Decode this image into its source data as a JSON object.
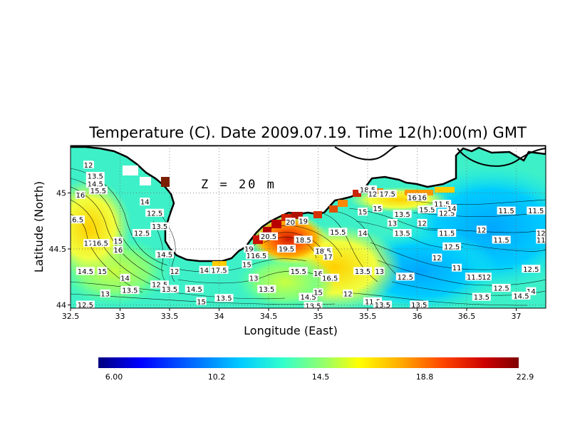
{
  "title": "Temperature (C). Date 2009.07.19. Time 12(h):00(m) GMT",
  "depth_label": "Z = 20 m",
  "x_axis": {
    "label": "Longitude (East)",
    "ticks": [
      32.5,
      33,
      33.5,
      34,
      34.5,
      35,
      35.5,
      36,
      36.5,
      37
    ],
    "tick_labels": [
      "32.5",
      "33",
      "33.5",
      "34",
      "34.5",
      "35",
      "35.5",
      "36",
      "36.5",
      "37"
    ],
    "range": [
      32.5,
      37.3
    ]
  },
  "y_axis": {
    "label": "Latitude (North)",
    "ticks": [
      44,
      44.5,
      45
    ],
    "tick_labels": [
      "44",
      "44.5",
      "45"
    ],
    "range": [
      44,
      45.3
    ]
  },
  "grid": "dotted",
  "colorbar": {
    "min": 6.0,
    "max": 22.9,
    "tick_labels": [
      "6.00",
      "10.2",
      "14.5",
      "18.8",
      "22.9"
    ],
    "colors": [
      "#00007f",
      "#0000ff",
      "#0066ff",
      "#00ccff",
      "#33ffcc",
      "#99ff66",
      "#ffff00",
      "#ffaa00",
      "#ff4400",
      "#cc0000",
      "#7f0000"
    ]
  },
  "colors": {
    "land": "#ffffff",
    "coast": "#000000"
  },
  "contour_labels": [
    {
      "text": "12",
      "lon": 32.68,
      "lat": 45.25
    },
    {
      "text": "13.5",
      "lon": 32.75,
      "lat": 45.15
    },
    {
      "text": "14.5",
      "lon": 32.75,
      "lat": 45.08
    },
    {
      "text": "15.5",
      "lon": 32.78,
      "lat": 45.02
    },
    {
      "text": "16",
      "lon": 32.6,
      "lat": 44.98
    },
    {
      "text": "14",
      "lon": 33.25,
      "lat": 44.92
    },
    {
      "text": "12.5",
      "lon": 33.35,
      "lat": 44.82
    },
    {
      "text": "16.5",
      "lon": 32.55,
      "lat": 44.76
    },
    {
      "text": "13.5",
      "lon": 33.4,
      "lat": 44.7
    },
    {
      "text": "12.5",
      "lon": 33.22,
      "lat": 44.64
    },
    {
      "text": "17",
      "lon": 32.68,
      "lat": 44.55
    },
    {
      "text": "16.5",
      "lon": 32.8,
      "lat": 44.55
    },
    {
      "text": "15",
      "lon": 32.98,
      "lat": 44.57
    },
    {
      "text": "16",
      "lon": 32.98,
      "lat": 44.49
    },
    {
      "text": "14.5",
      "lon": 33.45,
      "lat": 44.45
    },
    {
      "text": "14.5",
      "lon": 32.65,
      "lat": 44.3
    },
    {
      "text": "15",
      "lon": 32.82,
      "lat": 44.3
    },
    {
      "text": "14",
      "lon": 33.05,
      "lat": 44.24
    },
    {
      "text": "13",
      "lon": 32.85,
      "lat": 44.1
    },
    {
      "text": "13.5",
      "lon": 33.1,
      "lat": 44.13
    },
    {
      "text": "12",
      "lon": 33.55,
      "lat": 44.3
    },
    {
      "text": "12.5",
      "lon": 33.4,
      "lat": 44.18
    },
    {
      "text": "13.5",
      "lon": 33.5,
      "lat": 44.14
    },
    {
      "text": "14",
      "lon": 33.85,
      "lat": 44.31
    },
    {
      "text": "14.5",
      "lon": 33.75,
      "lat": 44.14
    },
    {
      "text": "15",
      "lon": 33.82,
      "lat": 44.03
    },
    {
      "text": "17.5",
      "lon": 34.0,
      "lat": 44.31
    },
    {
      "text": "13.5",
      "lon": 34.05,
      "lat": 44.06
    },
    {
      "text": "12.5",
      "lon": 32.65,
      "lat": 44.0
    },
    {
      "text": "15",
      "lon": 34.28,
      "lat": 44.36
    },
    {
      "text": "13",
      "lon": 34.35,
      "lat": 44.24
    },
    {
      "text": "13.5",
      "lon": 34.48,
      "lat": 44.14
    },
    {
      "text": "19",
      "lon": 34.3,
      "lat": 44.5
    },
    {
      "text": "17",
      "lon": 34.32,
      "lat": 44.44
    },
    {
      "text": "16.5",
      "lon": 34.4,
      "lat": 44.44
    },
    {
      "text": "20.5",
      "lon": 34.5,
      "lat": 44.61
    },
    {
      "text": "19.5",
      "lon": 34.68,
      "lat": 44.5
    },
    {
      "text": "18.5",
      "lon": 34.85,
      "lat": 44.58
    },
    {
      "text": "18.5",
      "lon": 35.05,
      "lat": 44.48
    },
    {
      "text": "17",
      "lon": 35.1,
      "lat": 44.43
    },
    {
      "text": "20",
      "lon": 34.72,
      "lat": 44.74
    },
    {
      "text": "19",
      "lon": 34.85,
      "lat": 44.75
    },
    {
      "text": "15.5",
      "lon": 35.2,
      "lat": 44.65
    },
    {
      "text": "14",
      "lon": 35.45,
      "lat": 44.64
    },
    {
      "text": "15.5",
      "lon": 34.8,
      "lat": 44.3
    },
    {
      "text": "16",
      "lon": 35.0,
      "lat": 44.28
    },
    {
      "text": "16.5",
      "lon": 35.12,
      "lat": 44.24
    },
    {
      "text": "14.5",
      "lon": 34.9,
      "lat": 44.07
    },
    {
      "text": "15",
      "lon": 35.0,
      "lat": 44.11
    },
    {
      "text": "13.5",
      "lon": 34.95,
      "lat": 43.99
    },
    {
      "text": "13.5",
      "lon": 35.45,
      "lat": 44.3
    },
    {
      "text": "13",
      "lon": 35.62,
      "lat": 44.3
    },
    {
      "text": "12",
      "lon": 35.3,
      "lat": 44.1
    },
    {
      "text": "11.5",
      "lon": 35.55,
      "lat": 44.03
    },
    {
      "text": "12.5",
      "lon": 35.88,
      "lat": 44.25
    },
    {
      "text": "18.5",
      "lon": 35.5,
      "lat": 45.03
    },
    {
      "text": "17.5",
      "lon": 35.7,
      "lat": 44.99
    },
    {
      "text": "12",
      "lon": 35.55,
      "lat": 44.99
    },
    {
      "text": "16",
      "lon": 35.95,
      "lat": 44.96
    },
    {
      "text": "16",
      "lon": 36.05,
      "lat": 44.96
    },
    {
      "text": "15",
      "lon": 35.45,
      "lat": 44.83
    },
    {
      "text": "15",
      "lon": 35.6,
      "lat": 44.86
    },
    {
      "text": "13.5",
      "lon": 35.85,
      "lat": 44.81
    },
    {
      "text": "13",
      "lon": 35.75,
      "lat": 44.73
    },
    {
      "text": "13.5",
      "lon": 35.85,
      "lat": 44.64
    },
    {
      "text": "12",
      "lon": 36.05,
      "lat": 44.73
    },
    {
      "text": "15.5",
      "lon": 36.1,
      "lat": 44.85
    },
    {
      "text": "12.5",
      "lon": 36.3,
      "lat": 44.82
    },
    {
      "text": "11.5",
      "lon": 36.25,
      "lat": 44.9
    },
    {
      "text": "14",
      "lon": 36.35,
      "lat": 44.86
    },
    {
      "text": "11.5",
      "lon": 36.9,
      "lat": 44.84
    },
    {
      "text": "11.5",
      "lon": 37.2,
      "lat": 44.84
    },
    {
      "text": "11.5",
      "lon": 36.3,
      "lat": 44.64
    },
    {
      "text": "12",
      "lon": 36.65,
      "lat": 44.67
    },
    {
      "text": "11.5",
      "lon": 36.85,
      "lat": 44.58
    },
    {
      "text": "12",
      "lon": 37.25,
      "lat": 44.64
    },
    {
      "text": "11",
      "lon": 37.25,
      "lat": 44.58
    },
    {
      "text": "12.5",
      "lon": 36.35,
      "lat": 44.52
    },
    {
      "text": "12",
      "lon": 36.2,
      "lat": 44.42
    },
    {
      "text": "11",
      "lon": 36.4,
      "lat": 44.33
    },
    {
      "text": "11.5",
      "lon": 36.58,
      "lat": 44.25
    },
    {
      "text": "12",
      "lon": 36.7,
      "lat": 44.25
    },
    {
      "text": "12.5",
      "lon": 36.85,
      "lat": 44.15
    },
    {
      "text": "13.5",
      "lon": 36.65,
      "lat": 44.07
    },
    {
      "text": "12.5",
      "lon": 37.15,
      "lat": 44.32
    },
    {
      "text": "14",
      "lon": 37.15,
      "lat": 44.12
    },
    {
      "text": "14.5",
      "lon": 37.05,
      "lat": 44.08
    },
    {
      "text": "13.5",
      "lon": 36.02,
      "lat": 44.0
    },
    {
      "text": "13.5",
      "lon": 35.65,
      "lat": 44.0
    }
  ]
}
